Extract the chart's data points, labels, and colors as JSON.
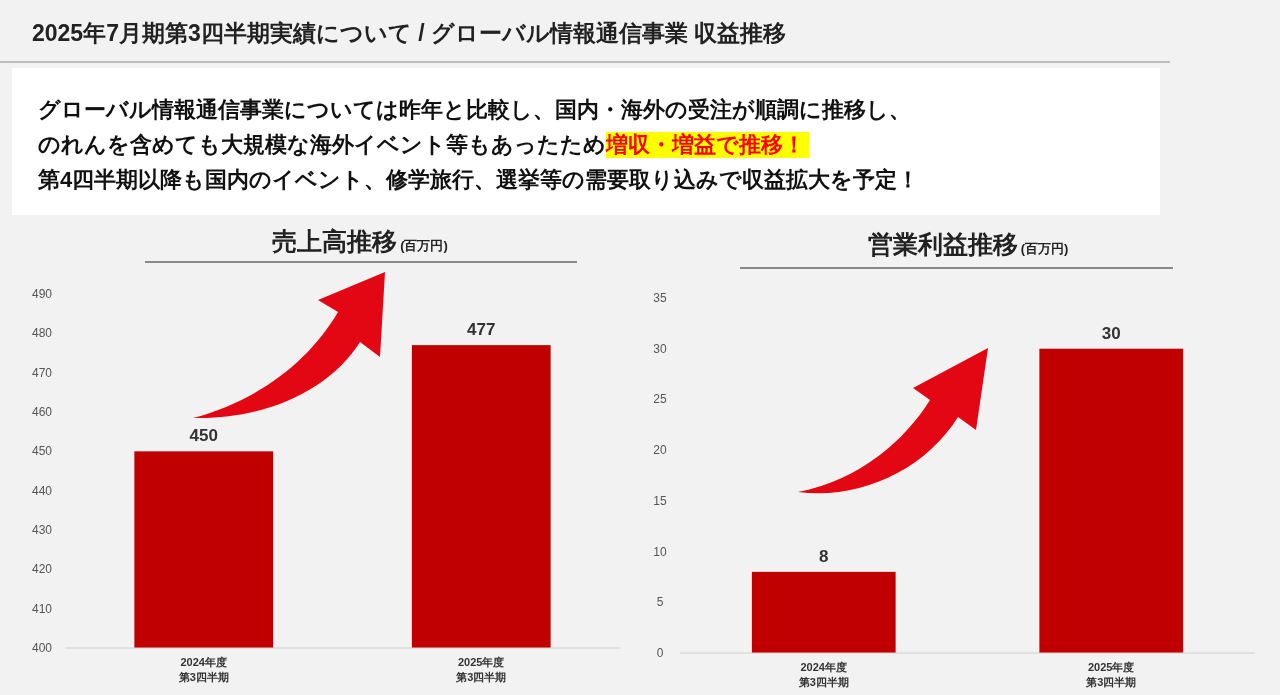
{
  "chart_data": [
    {
      "type": "other",
      "title": "2025年7月期第3四半期実績について / グローバル情報通信事業 収益推移",
      "annotations": [
        "グローバル情報通信事業については昨年と比較し、国内・海外の受注が順調に推移し、",
        "のれんを含めても大規模な海外イベント等もあったため",
        "増収・増益で推移！",
        "第4四半期以降も国内のイベント、修学旅行、選挙等の需要取り込みで収益拡大を予定！"
      ]
    },
    {
      "type": "bar",
      "title": "売上高推移",
      "subtitle": "(百万円)",
      "categories": [
        "2024年度第3四半期",
        "2025年度第3四半期"
      ],
      "values": [
        450,
        477
      ],
      "color": "#c00000",
      "ylim": [
        400,
        490
      ],
      "yticks": [
        400,
        410,
        420,
        430,
        440,
        450,
        460,
        470,
        480,
        490
      ],
      "data_labels": true
    },
    {
      "type": "bar",
      "title": "営業利益推移",
      "subtitle": "(百万円)",
      "categories": [
        "2024年度第3四半期",
        "2025年度第3四半期"
      ],
      "values": [
        8,
        30
      ],
      "color": "#c00000",
      "ylim": [
        0,
        35
      ],
      "yticks": [
        0,
        5,
        10,
        15,
        20,
        25,
        30,
        35
      ],
      "data_labels": true
    }
  ]
}
